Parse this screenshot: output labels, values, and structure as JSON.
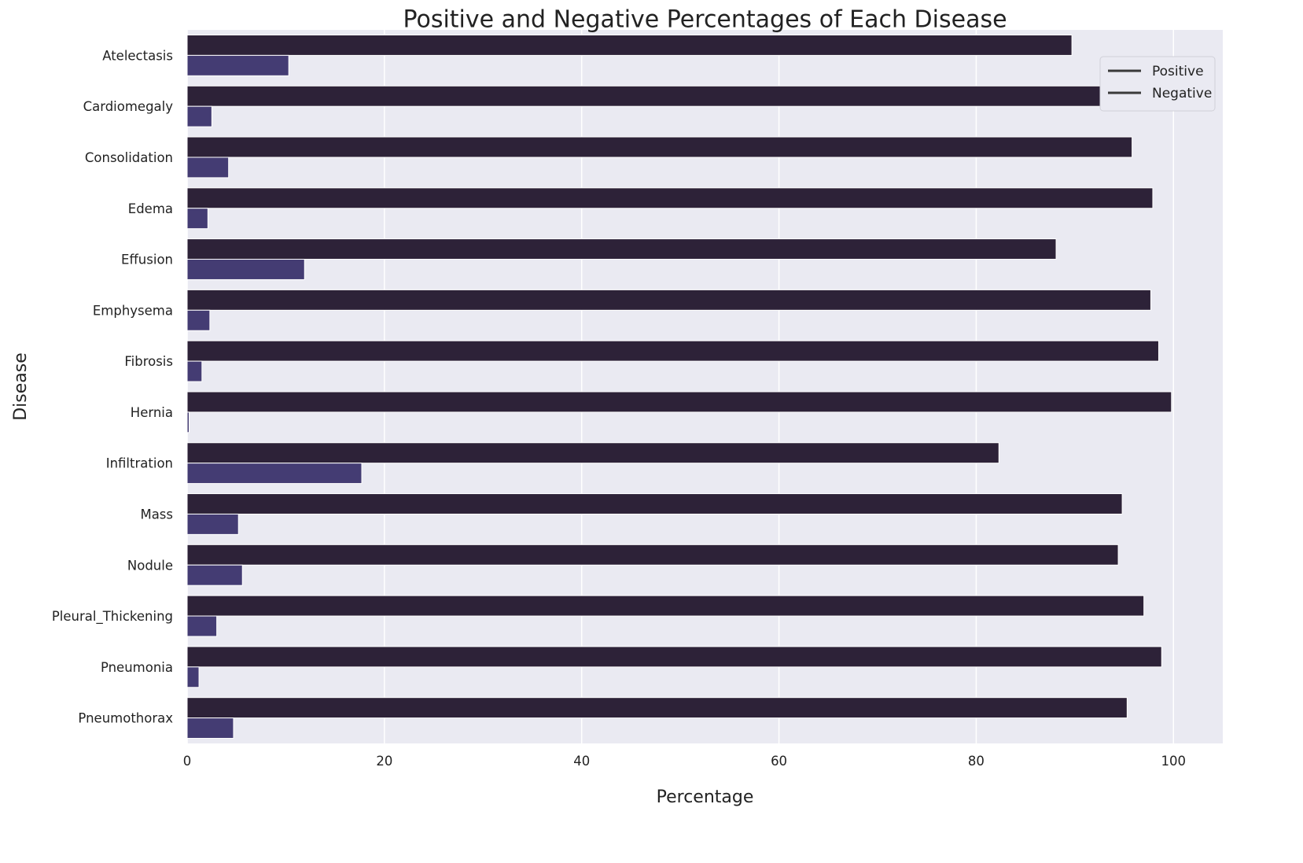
{
  "chart_data": {
    "type": "bar",
    "orientation": "horizontal",
    "title": "Positive and Negative Percentages of Each Disease",
    "xlabel": "Percentage",
    "ylabel": "Disease",
    "xlim": [
      0,
      105
    ],
    "xticks": [
      0,
      20,
      40,
      60,
      80,
      100
    ],
    "grid": true,
    "legend": {
      "placement": "top-right",
      "entries": [
        "Positive",
        "Negative"
      ]
    },
    "categories": [
      "Atelectasis",
      "Cardiomegaly",
      "Consolidation",
      "Edema",
      "Effusion",
      "Emphysema",
      "Fibrosis",
      "Hernia",
      "Infiltration",
      "Mass",
      "Nodule",
      "Pleural_Thickening",
      "Pneumonia",
      "Pneumothorax"
    ],
    "series": [
      {
        "values": [
          89.7,
          97.5,
          95.8,
          97.9,
          88.1,
          97.7,
          98.5,
          99.8,
          82.3,
          94.8,
          94.4,
          97.0,
          98.8,
          95.3
        ],
        "color": "#2d2238"
      },
      {
        "values": [
          10.3,
          2.5,
          4.2,
          2.1,
          11.9,
          2.3,
          1.5,
          0.2,
          17.7,
          5.2,
          5.6,
          3.0,
          1.2,
          4.7
        ],
        "color": "#443c73"
      }
    ]
  },
  "colors": {
    "plot_background": "#eaeaf2",
    "grid": "#ffffff",
    "text": "#222222"
  }
}
